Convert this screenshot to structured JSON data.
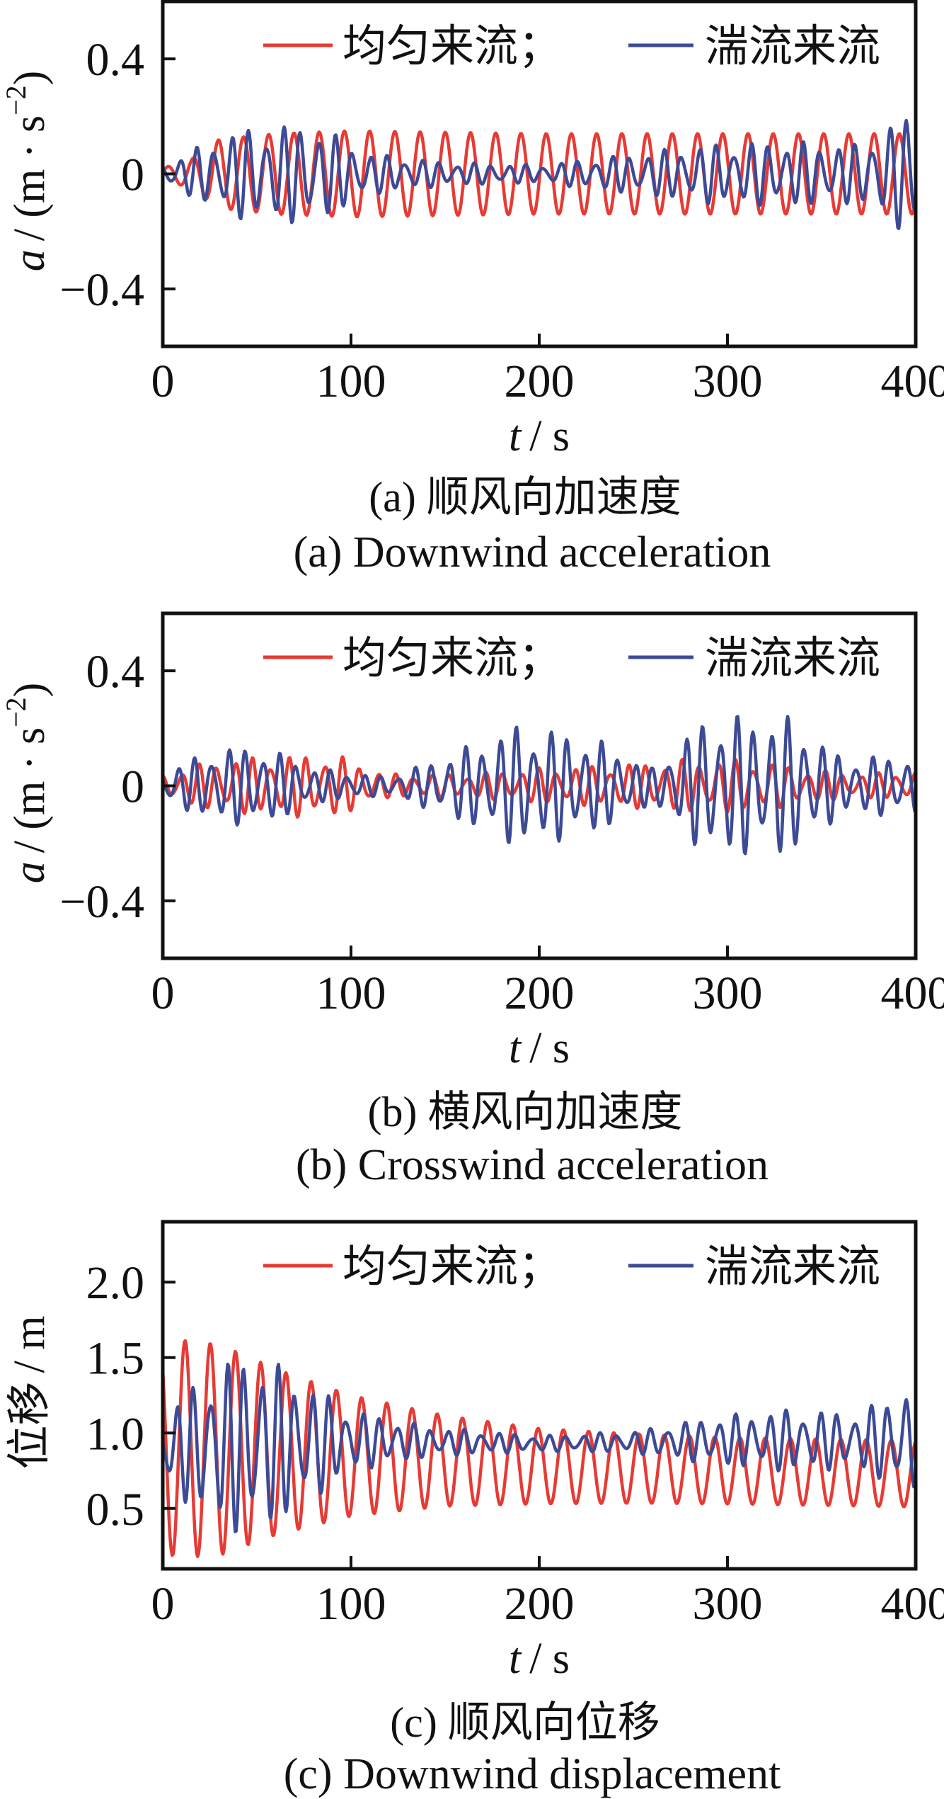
{
  "colors": {
    "uniform": "#e63b35",
    "turbulent": "#3d4a95",
    "axis": "#111111"
  },
  "legend": {
    "uniform_label": "均匀来流；",
    "turbulent_label": "湍流来流"
  },
  "chart_data": [
    {
      "type": "line",
      "panel": "a",
      "title_cn": "(a)  顺风向加速度",
      "title_en": "(a)  Downwind acceleration",
      "xlabel": "t / s",
      "xlabel_var": "t",
      "xlabel_unit": "/ s",
      "ylabel": "a / (m · s⁻²)",
      "ylabel_var": "a",
      "ylabel_unit": "/ (m · s",
      "ylabel_exp": "−2",
      "ylabel_close": ")",
      "xlim": [
        0,
        400
      ],
      "ylim": [
        -0.6,
        0.6
      ],
      "xticks": [
        0,
        100,
        200,
        300,
        400
      ],
      "xtick_labels": [
        "0",
        "100",
        "200",
        "300",
        "400"
      ],
      "yticks": [
        0.4,
        0,
        -0.4
      ],
      "ytick_labels": [
        "0.4",
        "0",
        "−0.4"
      ],
      "legend_position": "top",
      "series": [
        {
          "name": "均匀来流",
          "color": "#e63b35",
          "model": {
            "kind": "sine",
            "period": 13.4,
            "envelope": [
              [
                0,
                0.02
              ],
              [
                15,
                0.05
              ],
              [
                30,
                0.12
              ],
              [
                60,
                0.14
              ],
              [
                100,
                0.15
              ],
              [
                200,
                0.14
              ],
              [
                300,
                0.14
              ],
              [
                400,
                0.14
              ]
            ],
            "offset": 0
          }
        },
        {
          "name": "湍流来流",
          "color": "#3d4a95",
          "model": {
            "kind": "sine2",
            "period": 9.2,
            "envelope": [
              [
                0,
                0.03
              ],
              [
                15,
                0.08
              ],
              [
                40,
                0.15
              ],
              [
                80,
                0.17
              ],
              [
                110,
                0.07
              ],
              [
                150,
                0.04
              ],
              [
                200,
                0.03
              ],
              [
                240,
                0.06
              ],
              [
                290,
                0.1
              ],
              [
                330,
                0.11
              ],
              [
                370,
                0.1
              ],
              [
                395,
                0.2
              ],
              [
                400,
                0.18
              ]
            ],
            "offset": 0
          }
        }
      ]
    },
    {
      "type": "line",
      "panel": "b",
      "title_cn": "(b)  横风向加速度",
      "title_en": "(b)  Crosswind acceleration",
      "xlabel": "t / s",
      "xlabel_var": "t",
      "xlabel_unit": "/ s",
      "ylabel": "a / (m · s⁻²)",
      "ylabel_var": "a",
      "ylabel_unit": "/ (m · s",
      "ylabel_exp": "−2",
      "ylabel_close": ")",
      "xlim": [
        0,
        400
      ],
      "ylim": [
        -0.6,
        0.6
      ],
      "xticks": [
        0,
        100,
        200,
        300,
        400
      ],
      "xtick_labels": [
        "0",
        "100",
        "200",
        "300",
        "400"
      ],
      "yticks": [
        0.4,
        0,
        -0.4
      ],
      "ytick_labels": [
        "0.4",
        "0",
        "−0.4"
      ],
      "legend_position": "top",
      "series": [
        {
          "name": "均匀来流",
          "color": "#e63b35",
          "model": {
            "kind": "sine2",
            "period": 9.5,
            "envelope": [
              [
                0,
                0.04
              ],
              [
                30,
                0.09
              ],
              [
                60,
                0.1
              ],
              [
                90,
                0.11
              ],
              [
                120,
                0.04
              ],
              [
                160,
                0.04
              ],
              [
                200,
                0.06
              ],
              [
                240,
                0.07
              ],
              [
                280,
                0.09
              ],
              [
                310,
                0.09
              ],
              [
                340,
                0.06
              ],
              [
                370,
                0.04
              ],
              [
                400,
                0.05
              ]
            ],
            "offset": 0
          }
        },
        {
          "name": "湍流来流",
          "color": "#3d4a95",
          "model": {
            "kind": "sine2",
            "period": 9.0,
            "envelope": [
              [
                0,
                0.05
              ],
              [
                30,
                0.13
              ],
              [
                55,
                0.13
              ],
              [
                80,
                0.06
              ],
              [
                120,
                0.03
              ],
              [
                150,
                0.1
              ],
              [
                190,
                0.21
              ],
              [
                230,
                0.16
              ],
              [
                260,
                0.06
              ],
              [
                290,
                0.24
              ],
              [
                335,
                0.23
              ],
              [
                360,
                0.1
              ],
              [
                400,
                0.1
              ]
            ],
            "offset": 0
          }
        }
      ]
    },
    {
      "type": "line",
      "panel": "c",
      "title_cn": "(c)  顺风向位移",
      "title_en": "(c)  Downwind displacement",
      "xlabel": "t / s",
      "xlabel_var": "t",
      "xlabel_unit": "/ s",
      "ylabel": "位移 / m",
      "ylabel_var": "位移",
      "ylabel_unit": "/ m",
      "ylabel_exp": "",
      "ylabel_close": "",
      "xlim": [
        0,
        400
      ],
      "ylim": [
        0.1,
        2.4
      ],
      "xticks": [
        0,
        100,
        200,
        300,
        400
      ],
      "xtick_labels": [
        "0",
        "100",
        "200",
        "300",
        "400"
      ],
      "yticks": [
        2.0,
        1.5,
        1.0,
        0.5
      ],
      "ytick_labels": [
        "2.0",
        "1.5",
        "1.0",
        "0.5"
      ],
      "legend_position": "top",
      "series": [
        {
          "name": "均匀来流",
          "color": "#e63b35",
          "model": {
            "kind": "sine",
            "period": 13.4,
            "envelope": [
              [
                0,
                0.7
              ],
              [
                10,
                0.72
              ],
              [
                30,
                0.7
              ],
              [
                60,
                0.55
              ],
              [
                100,
                0.4
              ],
              [
                150,
                0.3
              ],
              [
                200,
                0.25
              ],
              [
                250,
                0.23
              ],
              [
                300,
                0.22
              ],
              [
                350,
                0.22
              ],
              [
                400,
                0.22
              ]
            ],
            "offset_env": [
              [
                0,
                0.9
              ],
              [
                50,
                0.88
              ],
              [
                100,
                0.85
              ],
              [
                200,
                0.78
              ],
              [
                300,
                0.75
              ],
              [
                400,
                0.73
              ]
            ]
          }
        },
        {
          "name": "湍流来流",
          "color": "#3d4a95",
          "model": {
            "kind": "sine2",
            "period": 9.0,
            "envelope": [
              [
                0,
                0.2
              ],
              [
                20,
                0.45
              ],
              [
                45,
                0.6
              ],
              [
                70,
                0.45
              ],
              [
                100,
                0.2
              ],
              [
                140,
                0.1
              ],
              [
                200,
                0.05
              ],
              [
                250,
                0.07
              ],
              [
                290,
                0.15
              ],
              [
                330,
                0.2
              ],
              [
                370,
                0.18
              ],
              [
                395,
                0.35
              ],
              [
                400,
                0.3
              ]
            ],
            "offset_env": [
              [
                0,
                0.9
              ],
              [
                100,
                0.95
              ],
              [
                200,
                0.93
              ],
              [
                300,
                0.95
              ],
              [
                400,
                0.95
              ]
            ]
          }
        }
      ]
    }
  ]
}
